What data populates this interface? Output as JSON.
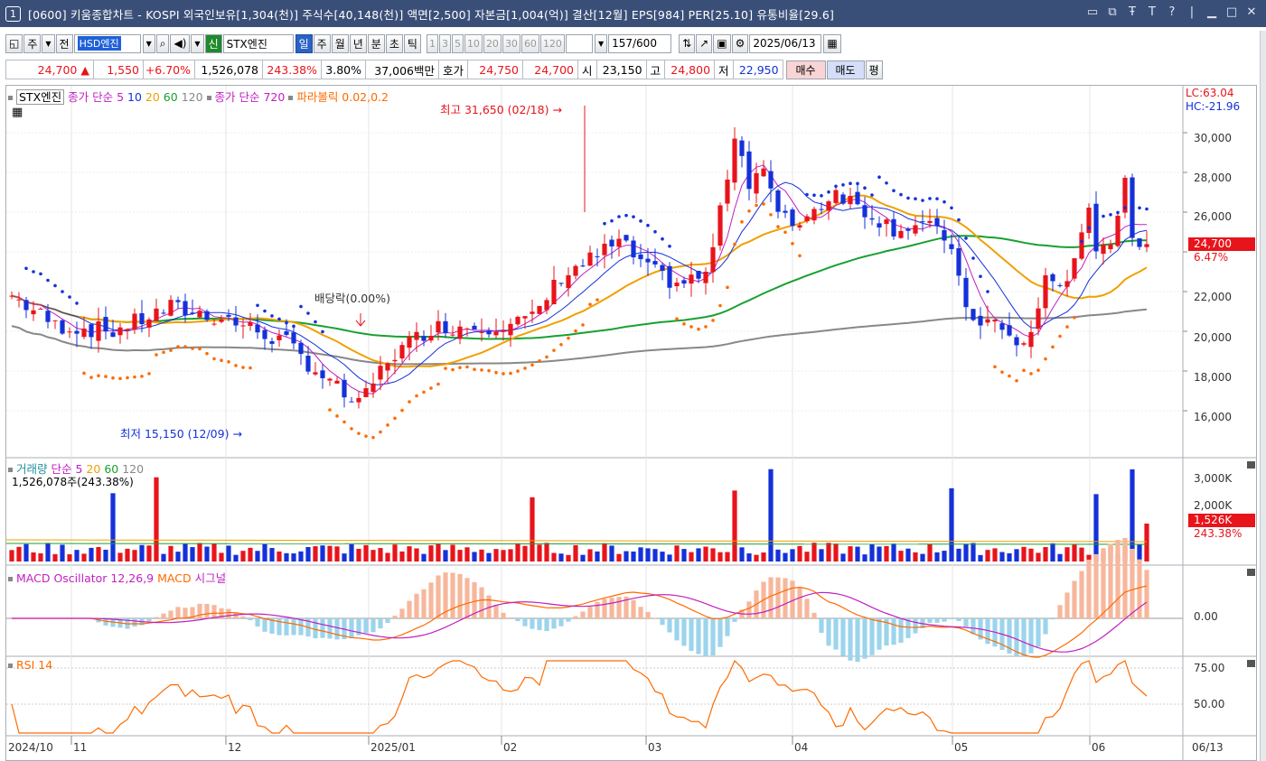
{
  "window": {
    "number": "1",
    "title": "[0600] 키움종합차트 - KOSPI 외국인보유[1,304(천)] 주식수[40,148(천)] 액면[2,500] 자본금[1,004(억)] 결산[12월] EPS[984] PER[25.10] 유통비율[29.6]",
    "controls": [
      "▭",
      "⧉",
      "Ŧ",
      "T",
      "?",
      "|",
      "▁",
      "□",
      "✕"
    ]
  },
  "toolbar": {
    "type_btn": "주",
    "type_all": "전",
    "code_input": "HSD엔진",
    "search_icon": "🔍",
    "new_badge": "신",
    "stock_name": "STX엔진",
    "periods": [
      "일",
      "주",
      "월",
      "년",
      "분",
      "초",
      "틱"
    ],
    "active_period": "일",
    "minute_units": [
      "1",
      "3",
      "5",
      "10",
      "20",
      "30",
      "60",
      "120"
    ],
    "count": "157",
    "count_total": "/600",
    "date": "2025/06/13"
  },
  "quote": {
    "price": "24,700",
    "arrow": "▲",
    "change": "1,550",
    "pct": "+6.70%",
    "volume": "1,526,078",
    "vol_ratio": "243.38%",
    "turnover": "3.80%",
    "amount": "37,006백만",
    "hoga_label": "호가",
    "ask": "24,750",
    "bid": "24,700",
    "open_label": "시",
    "open": "23,150",
    "high_label": "고",
    "high": "24,800",
    "low_label": "저",
    "low": "22,950",
    "buy_btn": "매수",
    "sell_btn": "매도",
    "avg_btn": "평"
  },
  "price_pane": {
    "name": "STX엔진",
    "legend": [
      {
        "t": "종가 단순 5",
        "c": "#c020c0"
      },
      {
        "t": "10",
        "c": "#1431d9"
      },
      {
        "t": "20",
        "c": "#f0a000"
      },
      {
        "t": "60",
        "c": "#18a030"
      },
      {
        "t": "120",
        "c": "#888888"
      },
      {
        "t": "종가 단순 720",
        "c": "#c020c0"
      },
      {
        "t": "파라볼릭 0.02,0.2",
        "c": "#ff6a00"
      }
    ],
    "lc": "LC:63.04",
    "hc": "HC:-21.96",
    "high_note": "최고 31,650 (02/18)",
    "low_note": "최저 15,150 (12/09)",
    "div_note": "배당락(0.00%)",
    "y_labels": [
      "30,000",
      "28,000",
      "26,000",
      "22,000",
      "20,000",
      "18,000",
      "16,000"
    ],
    "price_tag": "24,700",
    "pct_tag": "6.47%"
  },
  "volume_pane": {
    "legend": [
      {
        "t": "거래량",
        "c": "#2090a0"
      },
      {
        "t": "단순 5",
        "c": "#c020c0"
      },
      {
        "t": "20",
        "c": "#f0a000"
      },
      {
        "t": "60",
        "c": "#18a030"
      },
      {
        "t": "120",
        "c": "#888888"
      }
    ],
    "sub": "1,526,078주(243.38%)",
    "y_labels": [
      "3,000K",
      "2,000K"
    ],
    "tag": "1,526K",
    "tag2": "243.38%"
  },
  "macd_pane": {
    "legend": [
      {
        "t": "MACD Oscillator 12,26,9",
        "c": "#c020c0"
      },
      {
        "t": "MACD",
        "c": "#ff6a00"
      },
      {
        "t": "시그널",
        "c": "#c020c0"
      }
    ],
    "y_label": "0.00"
  },
  "rsi_pane": {
    "legend": "RSI 14",
    "y_labels": [
      "75.00",
      "50.00"
    ]
  },
  "x_axis": [
    "2024/10",
    "11",
    "12",
    "2025/01",
    "02",
    "03",
    "04",
    "05",
    "06",
    "06/13"
  ],
  "chart_data": {
    "type": "candlestick",
    "symbol": "STX엔진",
    "price_axis": {
      "ticks": [
        16000,
        18000,
        20000,
        22000,
        26000,
        28000,
        30000
      ]
    },
    "high_marker": {
      "value": 31650,
      "date": "02/18"
    },
    "low_marker": {
      "value": 15150,
      "date": "12/09"
    },
    "last": {
      "close": 24700,
      "open": 23150,
      "high": 24800,
      "low": 22950,
      "change_pct": 6.7
    },
    "volume_ticks_k": [
      2000,
      3000
    ],
    "last_volume": 1526078,
    "rsi_ticks": [
      50,
      75
    ]
  }
}
